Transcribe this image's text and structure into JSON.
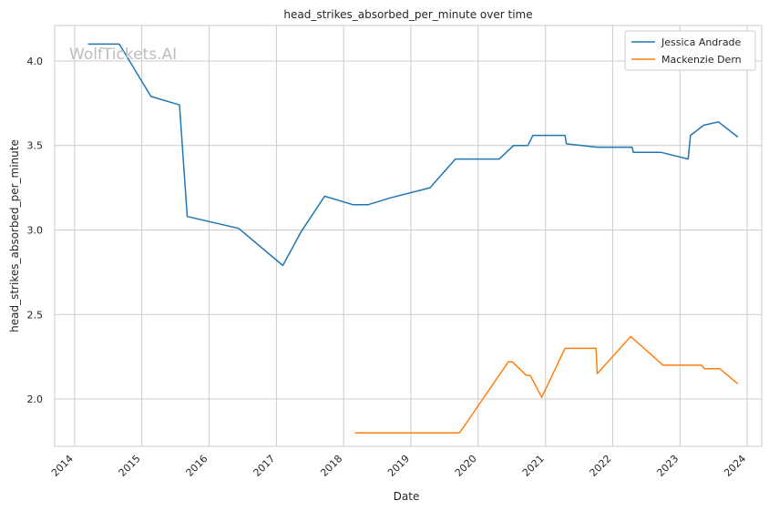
{
  "chart_data": {
    "type": "line",
    "title": "head_strikes_absorbed_per_minute over time",
    "xlabel": "Date",
    "ylabel": "head_strikes_absorbed_per_minute",
    "watermark": "WolfTickets.AI",
    "xlim": [
      "2013-09-15",
      "2024-03-20"
    ],
    "ylim": [
      1.72,
      4.21
    ],
    "x_ticks": [
      "2014",
      "2015",
      "2016",
      "2017",
      "2018",
      "2019",
      "2020",
      "2021",
      "2022",
      "2023",
      "2024"
    ],
    "y_ticks": [
      "2.0",
      "2.5",
      "3.0",
      "3.5",
      "4.0"
    ],
    "grid": true,
    "legend_position": "top-right",
    "series": [
      {
        "name": "Jessica Andrade",
        "color": "#1f77b4",
        "points": [
          [
            "2014-03-15",
            4.1
          ],
          [
            "2014-09-01",
            4.1
          ],
          [
            "2015-02-20",
            3.79
          ],
          [
            "2015-07-25",
            3.74
          ],
          [
            "2015-09-05",
            3.08
          ],
          [
            "2016-06-10",
            3.01
          ],
          [
            "2017-02-05",
            2.79
          ],
          [
            "2017-05-15",
            2.99
          ],
          [
            "2017-09-20",
            3.2
          ],
          [
            "2018-02-20",
            3.15
          ],
          [
            "2018-05-15",
            3.15
          ],
          [
            "2018-09-10",
            3.19
          ],
          [
            "2019-04-15",
            3.25
          ],
          [
            "2019-08-31",
            3.42
          ],
          [
            "2020-04-25",
            3.42
          ],
          [
            "2020-07-12",
            3.5
          ],
          [
            "2020-09-27",
            3.5
          ],
          [
            "2020-10-25",
            3.56
          ],
          [
            "2021-04-17",
            3.56
          ],
          [
            "2021-04-25",
            3.51
          ],
          [
            "2021-10-09",
            3.49
          ],
          [
            "2022-04-16",
            3.49
          ],
          [
            "2022-04-23",
            3.46
          ],
          [
            "2022-09-20",
            3.46
          ],
          [
            "2023-02-15",
            3.42
          ],
          [
            "2023-02-27",
            3.56
          ],
          [
            "2023-05-10",
            3.62
          ],
          [
            "2023-07-29",
            3.64
          ],
          [
            "2023-11-12",
            3.55
          ]
        ]
      },
      {
        "name": "Mackenzie Dern",
        "color": "#ff7f0e",
        "points": [
          [
            "2018-03-03",
            1.8
          ],
          [
            "2019-09-21",
            1.8
          ],
          [
            "2019-10-12",
            1.83
          ],
          [
            "2020-06-13",
            2.22
          ],
          [
            "2020-07-04",
            2.22
          ],
          [
            "2020-09-19",
            2.14
          ],
          [
            "2020-10-10",
            2.14
          ],
          [
            "2020-12-12",
            2.01
          ],
          [
            "2021-04-17",
            2.3
          ],
          [
            "2021-10-02",
            2.3
          ],
          [
            "2021-10-09",
            2.15
          ],
          [
            "2022-04-09",
            2.37
          ],
          [
            "2022-10-01",
            2.2
          ],
          [
            "2023-04-29",
            2.2
          ],
          [
            "2023-05-13",
            2.18
          ],
          [
            "2023-08-05",
            2.18
          ],
          [
            "2023-11-11",
            2.09
          ]
        ]
      }
    ]
  }
}
